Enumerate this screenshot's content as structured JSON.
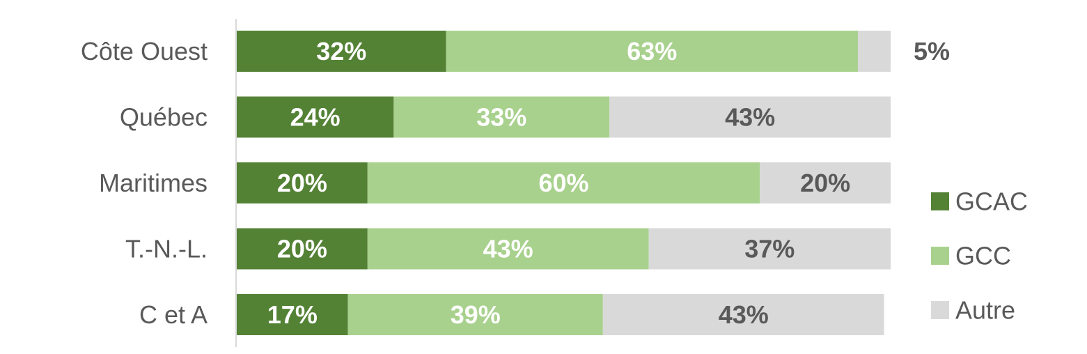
{
  "chart_data": {
    "type": "bar",
    "orientation": "horizontal",
    "stacked": true,
    "percent_stacked": true,
    "categories": [
      "Côte Ouest",
      "Québec",
      "Maritimes",
      "T.-N.-L.",
      "C et A"
    ],
    "series": [
      {
        "name": "GCAC",
        "values": [
          32,
          24,
          20,
          20,
          17
        ],
        "color": "#548235",
        "label_color": "#ffffff"
      },
      {
        "name": "GCC",
        "values": [
          63,
          33,
          60,
          43,
          39
        ],
        "color": "#a9d18e",
        "label_color": "#ffffff"
      },
      {
        "name": "Autre",
        "values": [
          5,
          43,
          20,
          37,
          43
        ],
        "color": "#d9d9d9",
        "label_color": "#595959"
      }
    ],
    "value_suffix": "%",
    "xlim": [
      0,
      100
    ],
    "grid": false,
    "legend": "right",
    "title": "",
    "xlabel": "",
    "ylabel": ""
  }
}
